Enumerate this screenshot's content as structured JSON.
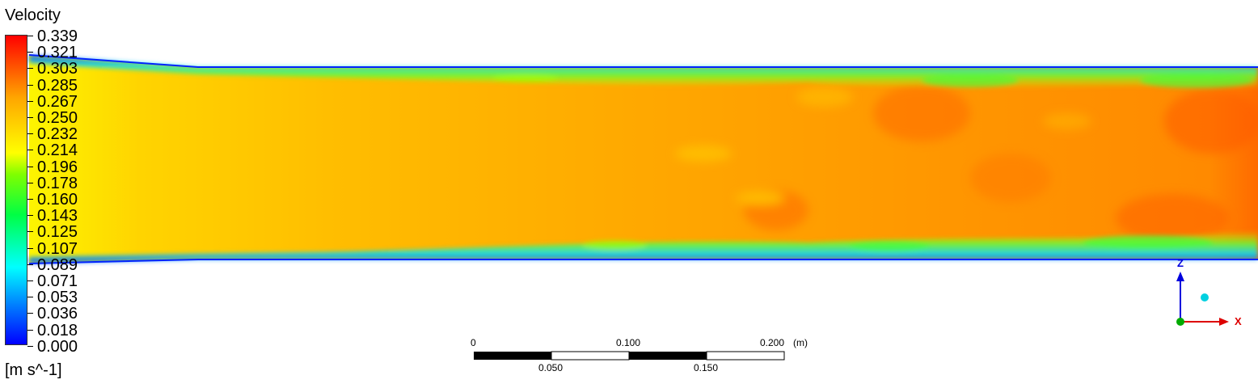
{
  "legend": {
    "title": "Velocity",
    "unit": "[m s^-1]",
    "ticks": [
      "0.339",
      "0.321",
      "0.303",
      "0.285",
      "0.267",
      "0.250",
      "0.232",
      "0.214",
      "0.196",
      "0.178",
      "0.160",
      "0.143",
      "0.125",
      "0.107",
      "0.089",
      "0.071",
      "0.053",
      "0.036",
      "0.018",
      "0.000"
    ],
    "colors": [
      "#0000ff",
      "#00ffff",
      "#00ff00",
      "#ffff00",
      "#ffa500",
      "#ff0000"
    ]
  },
  "scale_bar": {
    "top_labels": [
      "0",
      "0.100",
      "0.200"
    ],
    "bottom_labels": [
      "0.050",
      "0.150"
    ],
    "unit": "(m)"
  },
  "axes_triad": {
    "z_label": "Z",
    "x_label": "X"
  }
}
